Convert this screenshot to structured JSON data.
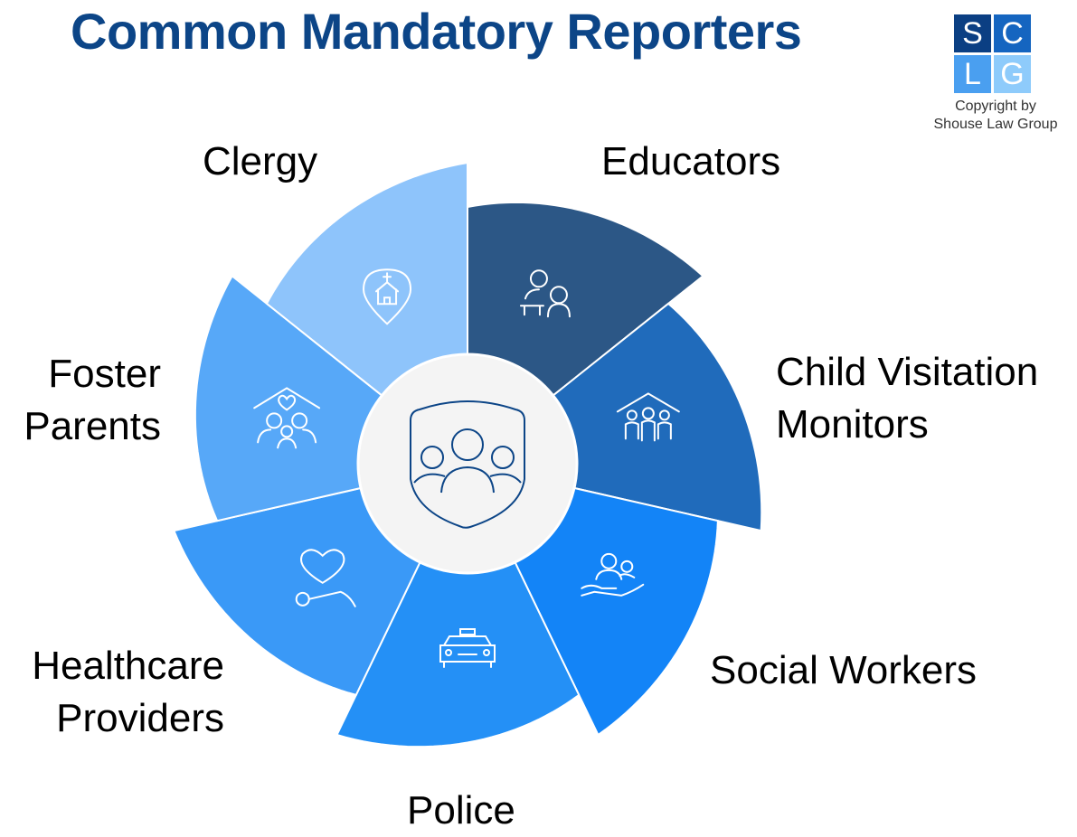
{
  "title": "Common Mandatory Reporters",
  "logo": {
    "letters": [
      "S",
      "C",
      "L",
      "G"
    ],
    "colors": [
      "#0b3f83",
      "#1565c0",
      "#4a9ff0",
      "#8ecbfb"
    ],
    "copyright_line1": "Copyright by",
    "copyright_line2": "Shouse Law Group"
  },
  "center_icon": "shield-people-icon",
  "segments": [
    {
      "label": "Educators",
      "color": "#2c5786",
      "icon": "teacher-student-icon"
    },
    {
      "label_line1": "Child Visitation",
      "label_line2": "Monitors",
      "color": "#206bbb",
      "icon": "family-house-icon"
    },
    {
      "label": "Social Workers",
      "color": "#1384f7",
      "icon": "hand-people-icon"
    },
    {
      "label": "Police",
      "color": "#2490f6",
      "icon": "police-car-icon"
    },
    {
      "label_line1": "Healthcare",
      "label_line2": "Providers",
      "color": "#3a99f7",
      "icon": "stethoscope-heart-icon"
    },
    {
      "label_line1": "Foster",
      "label_line2": "Parents",
      "color": "#57a8f8",
      "icon": "foster-family-icon"
    },
    {
      "label": "Clergy",
      "color": "#8ec4fb",
      "icon": "church-pin-icon"
    }
  ]
}
